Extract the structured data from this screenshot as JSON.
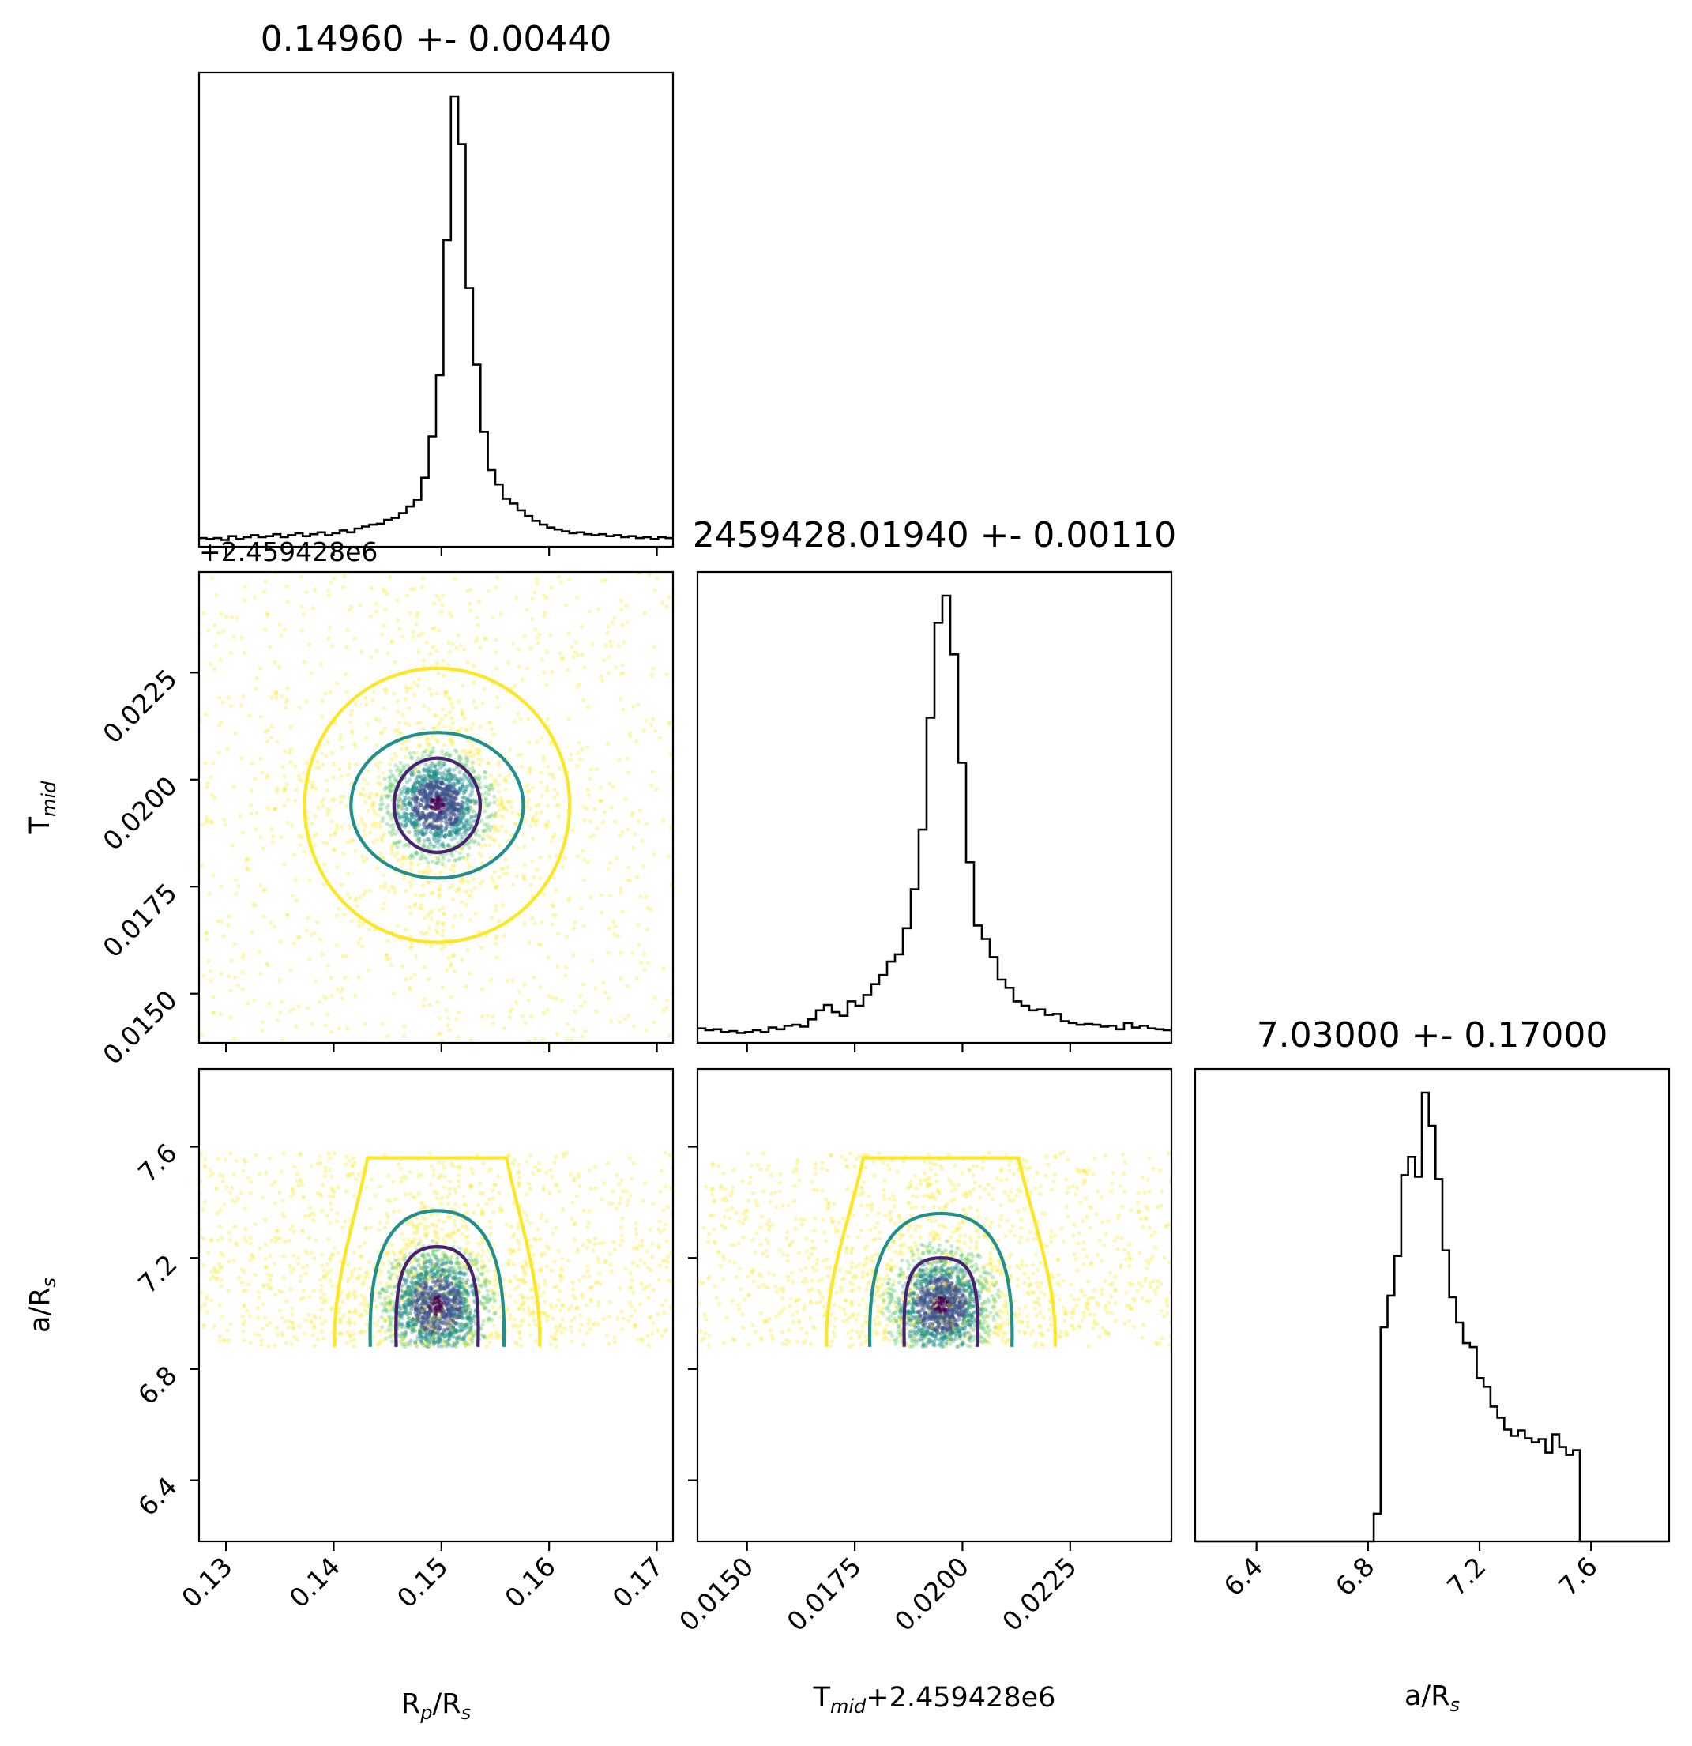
{
  "chart_data": {
    "type": "corner",
    "parameters": [
      {
        "key": "rprs",
        "label_main": "R",
        "label_sub1": "p",
        "label_mid": "/R",
        "label_sub2": "s",
        "title": "0.14960 +- 0.00440",
        "range": [
          0.1275,
          0.1715
        ],
        "ticks": [
          "0.13",
          "0.14",
          "0.15",
          "0.16",
          "0.17"
        ]
      },
      {
        "key": "tmid",
        "label_main": "T",
        "label_sub1": "mid",
        "label_mid": "",
        "label_sub2": "",
        "title": "2459428.01940 +- 0.00110",
        "offset_text": "+2.459428e6",
        "x_label_suffix": "+2.459428e6",
        "range": [
          0.01385,
          0.02485
        ],
        "ticks": [
          "0.0150",
          "0.0175",
          "0.0200",
          "0.0225"
        ]
      },
      {
        "key": "ars",
        "label_main": "a/R",
        "label_sub1": "",
        "label_mid": "",
        "label_sub2": "s",
        "title": "7.03000 +- 0.17000",
        "range": [
          6.18,
          7.88
        ],
        "ticks": [
          "6.4",
          "6.8",
          "7.2",
          "7.6"
        ]
      }
    ],
    "histograms": [
      {
        "param": "rprs",
        "values": [
          0.9,
          0.8,
          0.9,
          0.7,
          1.1,
          0.8,
          1.0,
          1.2,
          1.0,
          1.1,
          1.3,
          1.0,
          1.2,
          1.4,
          1.1,
          1.3,
          1.5,
          1.2,
          1.4,
          1.7,
          1.5,
          1.9,
          2.1,
          2.3,
          2.4,
          2.8,
          3.0,
          3.5,
          4.2,
          4.9,
          7.2,
          11.5,
          17.9,
          32.0,
          47.0,
          42.0,
          27.0,
          19.0,
          12.0,
          8.0,
          6.5,
          5.0,
          4.5,
          3.8,
          3.2,
          2.7,
          2.3,
          2.0,
          1.8,
          1.6,
          1.4,
          1.5,
          1.3,
          1.2,
          1.3,
          1.1,
          1.2,
          1.0,
          1.1,
          0.9,
          1.0,
          0.8,
          1.0,
          0.9
        ]
      },
      {
        "param": "tmid",
        "values": [
          1.6,
          1.4,
          1.5,
          1.2,
          1.3,
          1.1,
          1.2,
          1.4,
          1.2,
          1.7,
          1.5,
          1.9,
          2.0,
          1.8,
          2.6,
          3.6,
          4.2,
          3.4,
          3.0,
          4.6,
          4.1,
          5.3,
          6.5,
          7.5,
          9.0,
          9.8,
          12.7,
          17.0,
          23.6,
          36.0,
          46.5,
          49.5,
          43.0,
          31.0,
          20.0,
          13.0,
          11.5,
          9.5,
          7.0,
          6.1,
          4.6,
          4.1,
          3.6,
          3.7,
          3.1,
          3.2,
          2.4,
          2.2,
          2.0,
          2.1,
          2.0,
          1.8,
          1.9,
          1.5,
          2.2,
          1.7,
          1.9,
          1.6,
          1.5,
          1.4
        ]
      },
      {
        "param": "ars",
        "values": [
          0,
          0,
          0,
          0,
          0,
          0,
          0,
          0,
          0,
          0,
          0,
          0,
          0,
          0,
          0,
          0,
          0,
          0,
          0,
          0,
          0,
          0,
          0,
          0,
          0,
          0,
          3.5,
          27.0,
          31.0,
          36.0,
          46.2,
          48.5,
          46.0,
          56.6,
          52.4,
          45.7,
          36.7,
          30.8,
          27.6,
          25.0,
          24.5,
          20.6,
          19.5,
          17.0,
          15.6,
          14.1,
          13.3,
          14.0,
          13.0,
          12.5,
          12.9,
          11.2,
          13.5,
          11.9,
          10.9,
          11.5,
          0,
          0,
          0,
          0,
          0,
          0,
          0,
          0,
          0,
          0,
          0,
          0,
          0
        ]
      }
    ],
    "density_2d": [
      {
        "x": "rprs",
        "y": "tmid",
        "center": [
          0.1496,
          0.0194
        ],
        "contours": [
          {
            "level": "inner",
            "color": "#482173",
            "rx": 0.004,
            "ry": 0.0011
          },
          {
            "level": "middle",
            "color": "#21908d",
            "rx": 0.008,
            "ry": 0.0017
          },
          {
            "level": "outer",
            "color": "#fde725",
            "rx": 0.0123,
            "ry": 0.0032
          }
        ]
      },
      {
        "x": "rprs",
        "y": "ars",
        "center": [
          0.1496,
          7.03
        ],
        "y_cutoff": [
          6.88,
          7.58
        ],
        "contours": [
          {
            "level": "inner",
            "color": "#482173",
            "x_half": 0.0038,
            "top": 7.24
          },
          {
            "level": "middle",
            "color": "#21908d",
            "x_half": 0.0062,
            "top": 7.37
          },
          {
            "level": "outer",
            "color": "#fde725",
            "x_half": 0.0095,
            "top": 7.56
          }
        ]
      },
      {
        "x": "tmid",
        "y": "ars",
        "center": [
          0.0195,
          7.03
        ],
        "y_cutoff": [
          6.88,
          7.58
        ],
        "contours": [
          {
            "level": "inner",
            "color": "#482173",
            "x_half": 0.00085,
            "top": 7.2
          },
          {
            "level": "middle",
            "color": "#21908d",
            "x_half": 0.00165,
            "top": 7.36
          },
          {
            "level": "outer",
            "color": "#fde725",
            "x_half": 0.00265,
            "top": 7.56
          }
        ]
      }
    ],
    "colormap": [
      "#440154",
      "#3b528b",
      "#21908d",
      "#5dc963",
      "#fde725"
    ],
    "grid": false,
    "legend": "none"
  }
}
